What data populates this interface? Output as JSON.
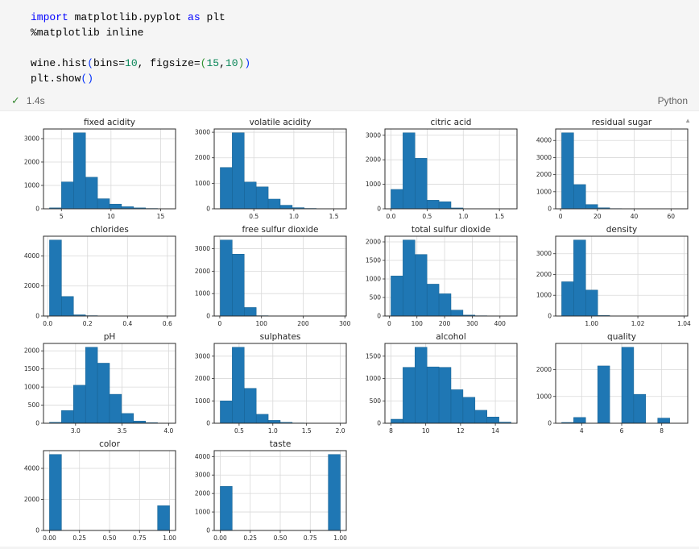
{
  "accent_colors": {
    "bar": "#1f77b4",
    "bar_edge": "#16608f",
    "keyword": "#0000ff",
    "number": "#098658",
    "success": "#388a34"
  },
  "icons": {
    "check_glyph": "✓",
    "scroll_up_glyph": "▲"
  },
  "code_cell": {
    "lines": [
      [
        {
          "t": "import",
          "c": "kw"
        },
        {
          "t": " matplotlib.pyplot ",
          "c": "pl"
        },
        {
          "t": "as",
          "c": "kw"
        },
        {
          "t": " plt",
          "c": "pl"
        }
      ],
      [
        {
          "t": "%matplotlib inline",
          "c": "pl"
        }
      ],
      [],
      [
        {
          "t": "wine.hist",
          "c": "pl"
        },
        {
          "t": "(",
          "c": "br1"
        },
        {
          "t": "bins=",
          "c": "pl"
        },
        {
          "t": "10",
          "c": "num"
        },
        {
          "t": ", figsize=",
          "c": "pl"
        },
        {
          "t": "(",
          "c": "br2"
        },
        {
          "t": "15",
          "c": "num"
        },
        {
          "t": ",",
          "c": "pl"
        },
        {
          "t": "10",
          "c": "num"
        },
        {
          "t": ")",
          "c": "br2"
        },
        {
          "t": ")",
          "c": "br1"
        }
      ],
      [
        {
          "t": "plt.show",
          "c": "pl"
        },
        {
          "t": "(",
          "c": "br1"
        },
        {
          "t": ")",
          "c": "br1"
        }
      ]
    ],
    "status": {
      "check_glyph": "✓",
      "duration": "1.4s",
      "language": "Python"
    }
  },
  "chart_data": [
    {
      "type": "histogram",
      "title": "fixed acidity",
      "x_min": 3.8,
      "x_max": 15.9,
      "bins": 10,
      "values": [
        40,
        1150,
        3250,
        1350,
        430,
        200,
        90,
        40,
        15,
        5
      ],
      "xticks": [
        {
          "v": 5,
          "l": "5"
        },
        {
          "v": 10,
          "l": "10"
        },
        {
          "v": 15,
          "l": "15"
        }
      ],
      "yticks": [
        {
          "v": 0,
          "l": "0"
        },
        {
          "v": 1000,
          "l": "1000"
        },
        {
          "v": 2000,
          "l": "2000"
        },
        {
          "v": 3000,
          "l": "3000"
        }
      ]
    },
    {
      "type": "histogram",
      "title": "volatile acidity",
      "x_min": 0.08,
      "x_max": 1.58,
      "bins": 10,
      "values": [
        1620,
        2980,
        1050,
        860,
        380,
        140,
        45,
        15,
        5,
        3
      ],
      "xticks": [
        {
          "v": 0.5,
          "l": "0.5"
        },
        {
          "v": 1.0,
          "l": "1.0"
        },
        {
          "v": 1.5,
          "l": "1.5"
        }
      ],
      "yticks": [
        {
          "v": 0,
          "l": "0"
        },
        {
          "v": 1000,
          "l": "1000"
        },
        {
          "v": 2000,
          "l": "2000"
        },
        {
          "v": 3000,
          "l": "3000"
        }
      ]
    },
    {
      "type": "histogram",
      "title": "citric acid",
      "x_min": 0.0,
      "x_max": 1.66,
      "bins": 10,
      "values": [
        790,
        3100,
        2060,
        350,
        290,
        35,
        8,
        3,
        1,
        1
      ],
      "xticks": [
        {
          "v": 0.0,
          "l": "0.0"
        },
        {
          "v": 0.5,
          "l": "0.5"
        },
        {
          "v": 1.0,
          "l": "1.0"
        },
        {
          "v": 1.5,
          "l": "1.5"
        }
      ],
      "yticks": [
        {
          "v": 0,
          "l": "0"
        },
        {
          "v": 1000,
          "l": "1000"
        },
        {
          "v": 2000,
          "l": "2000"
        },
        {
          "v": 3000,
          "l": "3000"
        }
      ]
    },
    {
      "type": "histogram",
      "title": "residual sugar",
      "x_min": 0.6,
      "x_max": 65.8,
      "bins": 10,
      "values": [
        4450,
        1420,
        250,
        60,
        15,
        6,
        3,
        2,
        1,
        1
      ],
      "xticks": [
        {
          "v": 0,
          "l": "0"
        },
        {
          "v": 20,
          "l": "20"
        },
        {
          "v": 40,
          "l": "40"
        },
        {
          "v": 60,
          "l": "60"
        }
      ],
      "yticks": [
        {
          "v": 0,
          "l": "0"
        },
        {
          "v": 1000,
          "l": "1000"
        },
        {
          "v": 2000,
          "l": "2000"
        },
        {
          "v": 3000,
          "l": "3000"
        },
        {
          "v": 4000,
          "l": "4000"
        }
      ]
    },
    {
      "type": "histogram",
      "title": "chlorides",
      "x_min": 0.009,
      "x_max": 0.611,
      "bins": 10,
      "values": [
        5060,
        1300,
        80,
        25,
        12,
        6,
        3,
        2,
        1,
        1
      ],
      "xticks": [
        {
          "v": 0.0,
          "l": "0.0"
        },
        {
          "v": 0.2,
          "l": "0.2"
        },
        {
          "v": 0.4,
          "l": "0.4"
        },
        {
          "v": 0.6,
          "l": "0.6"
        }
      ],
      "yticks": [
        {
          "v": 0,
          "l": "0"
        },
        {
          "v": 2000,
          "l": "2000"
        },
        {
          "v": 4000,
          "l": "4000"
        }
      ]
    },
    {
      "type": "histogram",
      "title": "free sulfur dioxide",
      "x_min": 1,
      "x_max": 289,
      "bins": 10,
      "values": [
        3390,
        2760,
        380,
        15,
        4,
        2,
        1,
        0,
        0,
        1
      ],
      "xticks": [
        {
          "v": 0,
          "l": "0"
        },
        {
          "v": 100,
          "l": "100"
        },
        {
          "v": 200,
          "l": "200"
        },
        {
          "v": 300,
          "l": "300"
        }
      ],
      "yticks": [
        {
          "v": 0,
          "l": "0"
        },
        {
          "v": 1000,
          "l": "1000"
        },
        {
          "v": 2000,
          "l": "2000"
        },
        {
          "v": 3000,
          "l": "3000"
        }
      ]
    },
    {
      "type": "histogram",
      "title": "total sulfur dioxide",
      "x_min": 6,
      "x_max": 440,
      "bins": 10,
      "values": [
        1080,
        2050,
        1660,
        860,
        600,
        160,
        25,
        8,
        2,
        1
      ],
      "xticks": [
        {
          "v": 0,
          "l": "0"
        },
        {
          "v": 100,
          "l": "100"
        },
        {
          "v": 200,
          "l": "200"
        },
        {
          "v": 300,
          "l": "300"
        },
        {
          "v": 400,
          "l": "400"
        }
      ],
      "yticks": [
        {
          "v": 0,
          "l": "0"
        },
        {
          "v": 500,
          "l": "500"
        },
        {
          "v": 1000,
          "l": "1000"
        },
        {
          "v": 1500,
          "l": "1500"
        },
        {
          "v": 2000,
          "l": "2000"
        }
      ]
    },
    {
      "type": "histogram",
      "title": "density",
      "x_min": 0.987,
      "x_max": 1.039,
      "bins": 10,
      "values": [
        1650,
        3660,
        1250,
        25,
        8,
        3,
        1,
        0,
        0,
        1
      ],
      "xticks": [
        {
          "v": 1.0,
          "l": "1.00"
        },
        {
          "v": 1.02,
          "l": "1.02"
        },
        {
          "v": 1.04,
          "l": "1.04"
        }
      ],
      "yticks": [
        {
          "v": 0,
          "l": "0"
        },
        {
          "v": 1000,
          "l": "1000"
        },
        {
          "v": 2000,
          "l": "2000"
        },
        {
          "v": 3000,
          "l": "3000"
        }
      ]
    },
    {
      "type": "histogram",
      "title": "pH",
      "x_min": 2.72,
      "x_max": 4.01,
      "bins": 10,
      "values": [
        25,
        350,
        1050,
        2100,
        1660,
        800,
        270,
        60,
        15,
        3
      ],
      "xticks": [
        {
          "v": 3.0,
          "l": "3.0"
        },
        {
          "v": 3.5,
          "l": "3.5"
        },
        {
          "v": 4.0,
          "l": "4.0"
        }
      ],
      "yticks": [
        {
          "v": 0,
          "l": "0"
        },
        {
          "v": 500,
          "l": "500"
        },
        {
          "v": 1000,
          "l": "1000"
        },
        {
          "v": 1500,
          "l": "1500"
        },
        {
          "v": 2000,
          "l": "2000"
        }
      ]
    },
    {
      "type": "histogram",
      "title": "sulphates",
      "x_min": 0.22,
      "x_max": 2.0,
      "bins": 10,
      "values": [
        1000,
        3400,
        1560,
        400,
        130,
        40,
        12,
        6,
        2,
        2
      ],
      "xticks": [
        {
          "v": 0.5,
          "l": "0.5"
        },
        {
          "v": 1.0,
          "l": "1.0"
        },
        {
          "v": 1.5,
          "l": "1.5"
        },
        {
          "v": 2.0,
          "l": "2.0"
        }
      ],
      "yticks": [
        {
          "v": 0,
          "l": "0"
        },
        {
          "v": 1000,
          "l": "1000"
        },
        {
          "v": 2000,
          "l": "2000"
        },
        {
          "v": 3000,
          "l": "3000"
        }
      ]
    },
    {
      "type": "histogram",
      "title": "alcohol",
      "x_min": 8.0,
      "x_max": 14.9,
      "bins": 10,
      "values": [
        90,
        1250,
        1700,
        1260,
        1250,
        750,
        580,
        290,
        140,
        25
      ],
      "xticks": [
        {
          "v": 8,
          "l": "8"
        },
        {
          "v": 10,
          "l": "10"
        },
        {
          "v": 12,
          "l": "12"
        },
        {
          "v": 14,
          "l": "14"
        }
      ],
      "yticks": [
        {
          "v": 0,
          "l": "0"
        },
        {
          "v": 500,
          "l": "500"
        },
        {
          "v": 1000,
          "l": "1000"
        },
        {
          "v": 1500,
          "l": "1500"
        }
      ]
    },
    {
      "type": "histogram",
      "title": "quality",
      "x_min": 3,
      "x_max": 9,
      "bins": 10,
      "values": [
        30,
        216,
        0,
        2138,
        0,
        2836,
        1079,
        0,
        193,
        5
      ],
      "xticks": [
        {
          "v": 4,
          "l": "4"
        },
        {
          "v": 6,
          "l": "6"
        },
        {
          "v": 8,
          "l": "8"
        }
      ],
      "yticks": [
        {
          "v": 0,
          "l": "0"
        },
        {
          "v": 1000,
          "l": "1000"
        },
        {
          "v": 2000,
          "l": "2000"
        }
      ]
    },
    {
      "type": "histogram",
      "title": "color",
      "x_min": 0.0,
      "x_max": 1.0,
      "bins": 10,
      "values": [
        4898,
        0,
        0,
        0,
        0,
        0,
        0,
        0,
        0,
        1599
      ],
      "xticks": [
        {
          "v": 0.0,
          "l": "0.00"
        },
        {
          "v": 0.25,
          "l": "0.25"
        },
        {
          "v": 0.5,
          "l": "0.50"
        },
        {
          "v": 0.75,
          "l": "0.75"
        },
        {
          "v": 1.0,
          "l": "1.00"
        }
      ],
      "yticks": [
        {
          "v": 0,
          "l": "0"
        },
        {
          "v": 2000,
          "l": "2000"
        },
        {
          "v": 4000,
          "l": "4000"
        }
      ]
    },
    {
      "type": "histogram",
      "title": "taste",
      "x_min": 0.0,
      "x_max": 1.0,
      "bins": 10,
      "values": [
        2384,
        0,
        0,
        0,
        0,
        0,
        0,
        0,
        0,
        4113
      ],
      "xticks": [
        {
          "v": 0.0,
          "l": "0.00"
        },
        {
          "v": 0.25,
          "l": "0.25"
        },
        {
          "v": 0.5,
          "l": "0.50"
        },
        {
          "v": 0.75,
          "l": "0.75"
        },
        {
          "v": 1.0,
          "l": "1.00"
        }
      ],
      "yticks": [
        {
          "v": 0,
          "l": "0"
        },
        {
          "v": 1000,
          "l": "1000"
        },
        {
          "v": 2000,
          "l": "2000"
        },
        {
          "v": 3000,
          "l": "3000"
        },
        {
          "v": 4000,
          "l": "4000"
        }
      ]
    }
  ]
}
